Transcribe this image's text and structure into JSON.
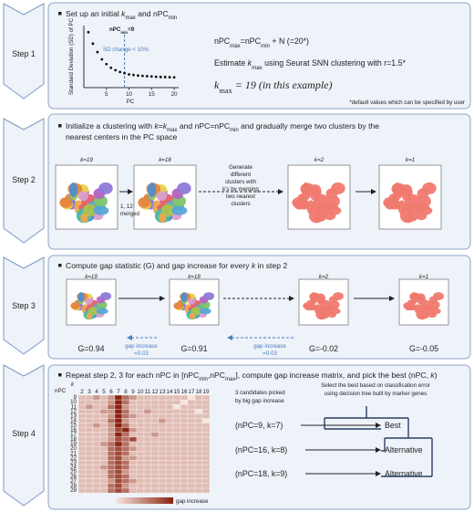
{
  "steps": [
    "Step 1",
    "Step 2",
    "Step 3",
    "Step 4"
  ],
  "step1": {
    "bullet": [
      "Set up an initial ",
      "k",
      "max",
      " and nPC",
      "min"
    ],
    "plot": {
      "ylabel": "Standard Deviation (SD) of PC",
      "xlabel": "PC",
      "x": [
        1,
        2,
        3,
        4,
        5,
        6,
        7,
        8,
        9,
        10,
        11,
        12,
        13,
        14,
        15,
        16,
        17,
        18,
        19,
        20
      ],
      "values": [
        9.2,
        7.3,
        5.9,
        4.7,
        3.9,
        3.3,
        2.9,
        2.6,
        2.4,
        2.2,
        2.1,
        2.0,
        1.95,
        1.9,
        1.85,
        1.8,
        1.77,
        1.75,
        1.73,
        1.71
      ],
      "xlim": [
        0,
        21
      ],
      "ylim": [
        0,
        10
      ],
      "xticks": [
        5,
        10,
        15,
        20
      ],
      "threshold_x": 9,
      "threshold_label": [
        "nPC",
        "min",
        "=9"
      ],
      "threshold_note": "SD change < 10%"
    },
    "formula": [
      "nPC",
      "max",
      "=nPC",
      "min",
      " + N (=20*)"
    ],
    "estimate": [
      "Estimate ",
      "k",
      "max",
      " using Seurat SNN clustering with r=1.5*"
    ],
    "kmax": [
      "k",
      "max",
      " = 19 (in this example)"
    ],
    "footnote": "*default values which can be specified by user"
  },
  "step2": {
    "bullet": [
      "Initialize a clustering with ",
      "k",
      "=",
      "k",
      "max",
      " and nPC=nPC",
      "min",
      " and gradually merge two clusters by the"
    ],
    "bullet_line2": "nearest centers in the PC space",
    "panels": [
      "k=19",
      "k=18",
      "k=2",
      "k=1"
    ],
    "merged_note": [
      "1, 12",
      "merged"
    ],
    "generate_note": [
      "Generate",
      "different",
      "clusters with",
      "k's by merging",
      "two nearest",
      "clusters"
    ]
  },
  "step3": {
    "bullet": [
      "Compute gap statistic (G) and gap increase for every ",
      "k",
      " in step 2"
    ],
    "panels": [
      "k=19",
      "k=18",
      "k=2",
      "k=1"
    ],
    "G": [
      "G=0.94",
      "G=0.91",
      "G=-0.02",
      "G=-0.05"
    ],
    "gap_notes": [
      [
        "gap increase",
        "=0.03"
      ],
      [
        "gap increase",
        "=0.03"
      ]
    ]
  },
  "step4": {
    "bullet": [
      "Repeat step 2, 3 for each nPC in [nPC",
      "min",
      ",nPC",
      "max",
      "], compute gap increase matrix, and pick the best (nPC, ",
      "k",
      ")"
    ],
    "heatmap": {
      "x_label": "k",
      "y_label": "nPC",
      "columns": [
        2,
        3,
        4,
        5,
        6,
        7,
        8,
        9,
        10,
        11,
        12,
        13,
        14,
        15,
        16,
        17,
        18,
        19
      ],
      "rows": [
        9,
        10,
        11,
        12,
        13,
        14,
        15,
        16,
        17,
        18,
        19,
        20,
        21,
        22,
        23,
        24,
        25,
        26,
        27,
        28,
        29
      ],
      "values": [
        [
          1,
          1,
          2,
          1,
          2,
          5,
          3,
          2,
          1,
          1,
          1,
          1,
          1,
          1,
          1,
          0,
          1,
          1
        ],
        [
          1,
          1,
          1,
          1,
          2,
          5,
          3,
          1,
          1,
          1,
          1,
          1,
          1,
          1,
          0,
          1,
          1,
          1
        ],
        [
          1,
          2,
          1,
          1,
          3,
          5,
          2,
          1,
          1,
          1,
          1,
          1,
          1,
          0,
          1,
          1,
          1,
          1
        ],
        [
          1,
          1,
          1,
          2,
          2,
          5,
          3,
          1,
          1,
          2,
          1,
          1,
          1,
          1,
          1,
          1,
          0,
          1
        ],
        [
          1,
          1,
          1,
          1,
          2,
          5,
          3,
          2,
          1,
          1,
          1,
          1,
          1,
          1,
          1,
          1,
          1,
          1
        ],
        [
          1,
          1,
          1,
          1,
          3,
          5,
          2,
          1,
          1,
          1,
          1,
          2,
          1,
          1,
          1,
          1,
          1,
          0
        ],
        [
          1,
          1,
          2,
          1,
          2,
          5,
          3,
          1,
          1,
          1,
          1,
          1,
          1,
          1,
          1,
          1,
          1,
          1
        ],
        [
          1,
          1,
          1,
          1,
          2,
          4,
          5,
          2,
          1,
          1,
          1,
          1,
          1,
          1,
          1,
          1,
          1,
          1
        ],
        [
          1,
          1,
          1,
          1,
          2,
          5,
          3,
          1,
          1,
          1,
          2,
          1,
          1,
          1,
          1,
          1,
          1,
          1
        ],
        [
          1,
          1,
          1,
          1,
          2,
          4,
          3,
          4,
          1,
          1,
          1,
          1,
          1,
          1,
          1,
          1,
          1,
          1
        ],
        [
          1,
          1,
          1,
          2,
          3,
          5,
          3,
          1,
          1,
          1,
          1,
          1,
          1,
          1,
          1,
          1,
          1,
          1
        ],
        [
          1,
          1,
          1,
          1,
          3,
          4,
          3,
          2,
          1,
          1,
          1,
          1,
          1,
          1,
          1,
          1,
          1,
          1
        ],
        [
          1,
          1,
          1,
          1,
          3,
          4,
          3,
          1,
          1,
          1,
          1,
          1,
          1,
          1,
          1,
          1,
          1,
          1
        ],
        [
          1,
          1,
          1,
          1,
          3,
          4,
          2,
          2,
          1,
          1,
          1,
          1,
          1,
          1,
          1,
          1,
          1,
          1
        ],
        [
          1,
          1,
          1,
          1,
          3,
          4,
          3,
          1,
          1,
          1,
          1,
          1,
          1,
          1,
          1,
          1,
          1,
          1
        ],
        [
          1,
          1,
          1,
          2,
          3,
          4,
          3,
          1,
          1,
          1,
          1,
          1,
          1,
          1,
          1,
          1,
          1,
          1
        ],
        [
          1,
          1,
          1,
          1,
          3,
          4,
          2,
          1,
          1,
          1,
          1,
          1,
          1,
          1,
          1,
          1,
          1,
          1
        ],
        [
          1,
          1,
          1,
          1,
          3,
          4,
          3,
          1,
          1,
          1,
          1,
          1,
          1,
          1,
          1,
          1,
          1,
          1
        ],
        [
          1,
          1,
          1,
          1,
          2,
          4,
          3,
          2,
          1,
          1,
          1,
          1,
          1,
          1,
          1,
          1,
          1,
          1
        ],
        [
          1,
          1,
          1,
          1,
          3,
          4,
          2,
          1,
          1,
          1,
          1,
          1,
          1,
          1,
          1,
          1,
          1,
          1
        ],
        [
          1,
          1,
          1,
          1,
          3,
          4,
          3,
          1,
          1,
          1,
          1,
          1,
          1,
          1,
          1,
          1,
          1,
          1
        ]
      ],
      "legend": "gap increase"
    },
    "candidates_note": [
      "3 candidates picked",
      "by big gap increase"
    ],
    "select_note": [
      "Select the best based on classification error",
      "using decision tree built by marker genes"
    ],
    "candidates": [
      "(nPC=9, k=7)",
      "(nPC=16, k=8)",
      "(nPC=18, k=9)"
    ],
    "outcomes": [
      "Best",
      "Alternative",
      "Alternative"
    ]
  }
}
